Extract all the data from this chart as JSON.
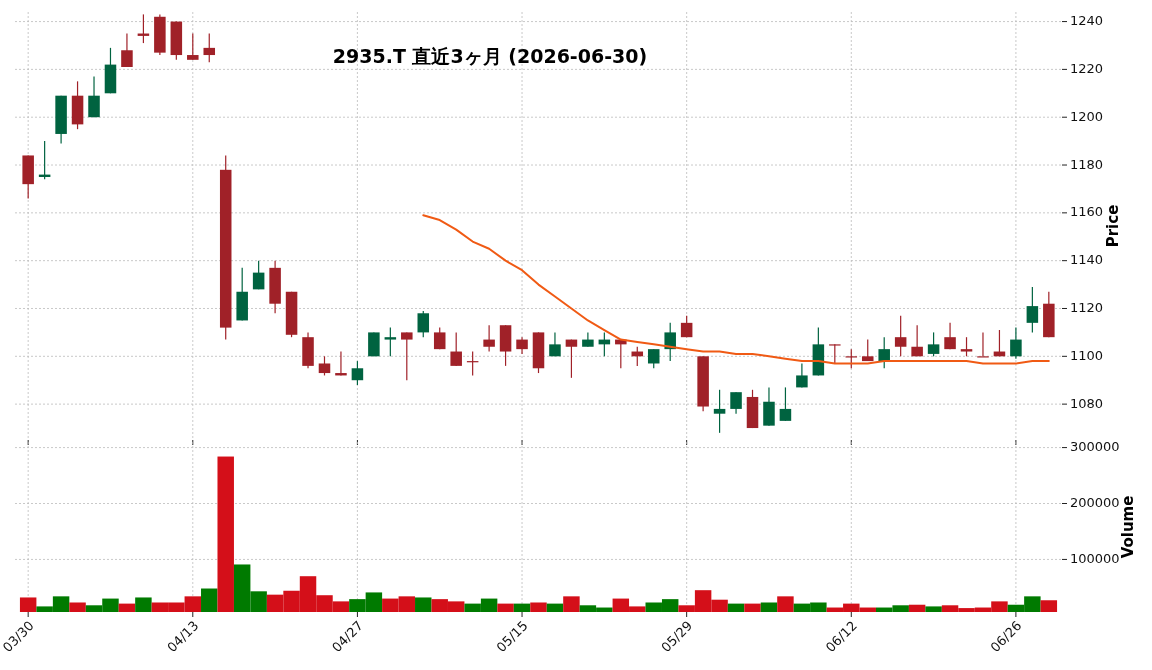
{
  "chart_data": [
    {
      "type": "candlestick",
      "title": "2935.T  直近3ヶ月  (2026-06-30)",
      "ylabel": "Price",
      "categories": [
        null,
        null,
        null,
        null,
        null,
        null,
        null,
        null,
        null,
        null,
        null,
        null,
        null,
        null,
        null,
        null,
        null,
        null,
        null,
        null,
        null,
        null,
        null,
        null,
        null,
        null,
        null,
        null,
        null,
        null,
        null,
        null,
        null,
        null,
        null,
        null,
        null,
        null,
        null,
        null,
        null,
        null,
        null,
        null,
        null,
        null,
        null,
        null,
        null,
        null,
        null,
        null,
        null,
        null,
        null,
        null,
        null,
        null,
        null,
        null,
        null,
        null,
        null
      ],
      "ohlc": [
        [
          1184,
          1184,
          1166,
          1172
        ],
        [
          1175,
          1190,
          1174,
          1176
        ],
        [
          1193,
          1209,
          1189,
          1209
        ],
        [
          1209,
          1215,
          1195,
          1197
        ],
        [
          1200,
          1217,
          1200,
          1209
        ],
        [
          1210,
          1229,
          1210,
          1222
        ],
        [
          1228,
          1235,
          1221,
          1221
        ],
        [
          1235,
          1243,
          1231,
          1234
        ],
        [
          1242,
          1243,
          1226,
          1227
        ],
        [
          1240,
          1240,
          1224,
          1226
        ],
        [
          1226,
          1235,
          1224,
          1224
        ],
        [
          1229,
          1235,
          1223,
          1226
        ],
        [
          1178,
          1184,
          1107,
          1112
        ],
        [
          1115,
          1137,
          1115,
          1127
        ],
        [
          1128,
          1140,
          1128,
          1135
        ],
        [
          1137,
          1140,
          1118,
          1122
        ],
        [
          1127,
          1127,
          1108,
          1109
        ],
        [
          1108,
          1110,
          1095,
          1096
        ],
        [
          1097,
          1100,
          1092,
          1093
        ],
        [
          1093,
          1102,
          1092,
          1092
        ],
        [
          1090,
          1098,
          1088,
          1095
        ],
        [
          1100,
          1110,
          1100,
          1110
        ],
        [
          1107,
          1112,
          1100,
          1108
        ],
        [
          1110,
          1110,
          1090,
          1107
        ],
        [
          1110,
          1119,
          1108,
          1118
        ],
        [
          1110,
          1112,
          1103,
          1103
        ],
        [
          1102,
          1110,
          1096,
          1096
        ],
        [
          1098,
          1102,
          1092,
          1098
        ],
        [
          1107,
          1113,
          1102,
          1104
        ],
        [
          1113,
          1113,
          1096,
          1102
        ],
        [
          1107,
          1108,
          1101,
          1103
        ],
        [
          1110,
          1110,
          1093,
          1095
        ],
        [
          1100,
          1110,
          1100,
          1105
        ],
        [
          1107,
          1107,
          1091,
          1104
        ],
        [
          1104,
          1110,
          1104,
          1107
        ],
        [
          1105,
          1110,
          1100,
          1107
        ],
        [
          1107,
          1107,
          1095,
          1105
        ],
        [
          1102,
          1104,
          1096,
          1100
        ],
        [
          1097,
          1103,
          1095,
          1103
        ],
        [
          1103,
          1114,
          1098,
          1110
        ],
        [
          1114,
          1117,
          1108,
          1108
        ],
        [
          1100,
          1100,
          1077,
          1079
        ],
        [
          1076,
          1086,
          1068,
          1078
        ],
        [
          1078,
          1085,
          1076,
          1085
        ],
        [
          1083,
          1086,
          1070,
          1070
        ],
        [
          1071,
          1087,
          1071,
          1081
        ],
        [
          1073,
          1087,
          1073,
          1078
        ],
        [
          1087,
          1097,
          1087,
          1092
        ],
        [
          1092,
          1112,
          1092,
          1105
        ],
        [
          1105,
          1105,
          1097,
          1105
        ],
        [
          1100,
          1103,
          1095,
          1100
        ],
        [
          1100,
          1107,
          1098,
          1098
        ],
        [
          1098,
          1108,
          1095,
          1103
        ],
        [
          1108,
          1117,
          1100,
          1104
        ],
        [
          1104,
          1113,
          1100,
          1100
        ],
        [
          1101,
          1110,
          1100,
          1105
        ],
        [
          1108,
          1114,
          1103,
          1103
        ],
        [
          1103,
          1108,
          1100,
          1102
        ],
        [
          1100,
          1110,
          1100,
          1100
        ],
        [
          1102,
          1111,
          1100,
          1100
        ],
        [
          1100,
          1112,
          1099,
          1107
        ],
        [
          1114,
          1129,
          1110,
          1121
        ],
        [
          1122,
          1127,
          1108,
          1108
        ]
      ],
      "colors": [
        "#a02128",
        "#006340",
        "#006340",
        "#a02128",
        "#006340",
        "#006340",
        "#a02128",
        "#a02128",
        "#a02128",
        "#a02128",
        "#a02128",
        "#a02128",
        "#a02128",
        "#006340",
        "#006340",
        "#a02128",
        "#a02128",
        "#a02128",
        "#a02128",
        "#a02128",
        "#006340",
        "#006340",
        "#006340",
        "#a02128",
        "#006340",
        "#a02128",
        "#a02128",
        "#a02128",
        "#a02128",
        "#a02128",
        "#a02128",
        "#a02128",
        "#006340",
        "#a02128",
        "#006340",
        "#006340",
        "#a02128",
        "#a02128",
        "#006340",
        "#006340",
        "#a02128",
        "#a02128",
        "#006340",
        "#006340",
        "#a02128",
        "#006340",
        "#006340",
        "#006340",
        "#006340",
        "#a02128",
        "#a02128",
        "#a02128",
        "#006340",
        "#a02128",
        "#a02128",
        "#006340",
        "#a02128",
        "#a02128",
        "#a02128",
        "#a02128",
        "#006340",
        "#006340",
        "#a02128"
      ],
      "series": [
        {
          "type": "line",
          "color": "#f05a14",
          "values": [
            null,
            null,
            null,
            null,
            null,
            null,
            null,
            null,
            null,
            null,
            null,
            null,
            null,
            null,
            null,
            null,
            null,
            null,
            null,
            null,
            null,
            null,
            null,
            null,
            1159,
            1157,
            1153,
            1148,
            1145,
            1140,
            1136,
            1130,
            1125,
            1120,
            1115,
            1111,
            1107,
            1106,
            1105,
            1104,
            1103,
            1102,
            1102,
            1101,
            1101,
            1100,
            1099,
            1098,
            1098,
            1097,
            1097,
            1097,
            1098,
            1098,
            1098,
            1098,
            1098,
            1098,
            1097,
            1097,
            1097,
            1098,
            1098
          ]
        }
      ],
      "ylim": [
        1065,
        1244
      ],
      "yticks": [
        1080,
        1100,
        1120,
        1140,
        1160,
        1180,
        1200,
        1220,
        1240
      ],
      "grid": true,
      "tick_labels": "y"
    },
    {
      "type": "bar",
      "ylabel": "Volume",
      "categories": [
        "03/30",
        null,
        null,
        null,
        null,
        null,
        null,
        null,
        null,
        null,
        "04/13",
        null,
        null,
        null,
        null,
        null,
        null,
        null,
        null,
        null,
        "04/27",
        null,
        null,
        null,
        null,
        null,
        null,
        null,
        null,
        null,
        "05/15",
        null,
        null,
        null,
        null,
        null,
        null,
        null,
        null,
        null,
        "05/29",
        null,
        null,
        null,
        null,
        null,
        null,
        null,
        null,
        null,
        "06/12",
        null,
        null,
        null,
        null,
        null,
        null,
        null,
        null,
        null,
        "06/26",
        null,
        null
      ],
      "values": [
        32000,
        16000,
        34000,
        23000,
        18000,
        30000,
        21000,
        32000,
        23000,
        23000,
        34000,
        48000,
        284000,
        91000,
        43000,
        37000,
        44000,
        70000,
        36000,
        25000,
        29000,
        41000,
        30000,
        34000,
        32000,
        29000,
        25000,
        21000,
        30000,
        21000,
        21000,
        23000,
        21000,
        34000,
        18000,
        14000,
        30000,
        16000,
        23000,
        29000,
        18000,
        45000,
        28000,
        21000,
        21000,
        23000,
        34000,
        21000,
        23000,
        14000,
        21000,
        14000,
        14000,
        18000,
        19000,
        16000,
        18000,
        13000,
        14000,
        25000,
        19000,
        34000,
        27000
      ],
      "colors": [
        "#d40f19",
        "#007a00",
        "#007a00",
        "#d40f19",
        "#007a00",
        "#007a00",
        "#d40f19",
        "#007a00",
        "#d40f19",
        "#d40f19",
        "#d40f19",
        "#007a00",
        "#d40f19",
        "#007a00",
        "#007a00",
        "#d40f19",
        "#d40f19",
        "#d40f19",
        "#d40f19",
        "#d40f19",
        "#007a00",
        "#007a00",
        "#d40f19",
        "#d40f19",
        "#007a00",
        "#d40f19",
        "#d40f19",
        "#007a00",
        "#007a00",
        "#d40f19",
        "#007a00",
        "#d40f19",
        "#007a00",
        "#d40f19",
        "#007a00",
        "#007a00",
        "#d40f19",
        "#d40f19",
        "#007a00",
        "#007a00",
        "#d40f19",
        "#d40f19",
        "#d40f19",
        "#007a00",
        "#d40f19",
        "#007a00",
        "#d40f19",
        "#007a00",
        "#007a00",
        "#d40f19",
        "#d40f19",
        "#d40f19",
        "#007a00",
        "#007a00",
        "#d40f19",
        "#007a00",
        "#d40f19",
        "#d40f19",
        "#d40f19",
        "#d40f19",
        "#007a00",
        "#007a00",
        "#d40f19"
      ],
      "ylim": [
        6000,
        310000
      ],
      "yticks": [
        100000,
        200000,
        300000
      ],
      "grid": true
    }
  ]
}
